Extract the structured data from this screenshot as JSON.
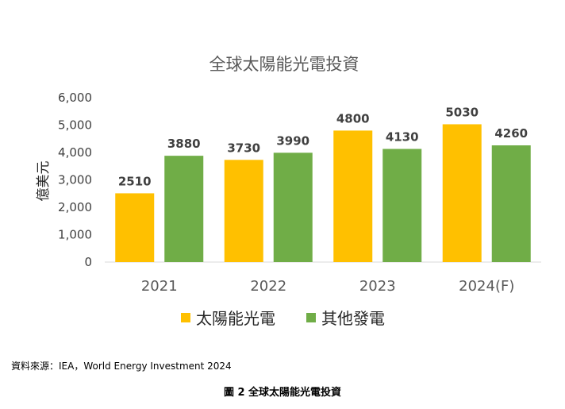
{
  "chart_data": {
    "type": "bar",
    "title": "全球太陽能光電投資",
    "ylabel": "億美元",
    "xlabel": "",
    "categories": [
      "2021",
      "2022",
      "2023",
      "2024(F)"
    ],
    "series": [
      {
        "name": "太陽能光電",
        "values": [
          2510,
          3730,
          4800,
          5030
        ],
        "color": "#FFC000"
      },
      {
        "name": "其他發電",
        "values": [
          3880,
          3990,
          4130,
          4260
        ],
        "color": "#70AD47"
      }
    ],
    "ylim": [
      0,
      6000
    ],
    "yticks": [
      "0",
      "1,000",
      "2,000",
      "3,000",
      "4,000",
      "5,000",
      "6,000"
    ],
    "ytick_values": [
      0,
      1000,
      2000,
      3000,
      4000,
      5000,
      6000
    ],
    "grid": false,
    "legend_position": "bottom",
    "data_labels": true
  },
  "source_text": "資料來源：IEA，World Energy Investment 2024",
  "caption": "圖 2  全球太陽能光電投資"
}
